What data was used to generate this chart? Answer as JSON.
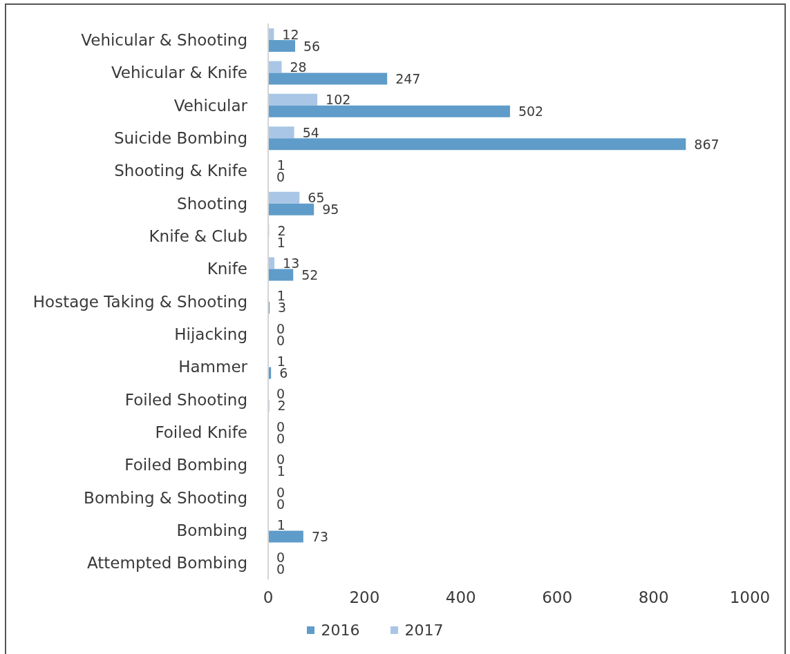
{
  "chart_data": {
    "type": "bar",
    "orientation": "horizontal",
    "categories": [
      "Vehicular & Shooting",
      "Vehicular & Knife",
      "Vehicular",
      "Suicide Bombing",
      "Shooting & Knife",
      "Shooting",
      "Knife & Club",
      "Knife",
      "Hostage Taking & Shooting",
      "Hijacking",
      "Hammer",
      "Foiled Shooting",
      "Foiled Knife",
      "Foiled Bombing",
      "Bombing & Shooting",
      "Bombing",
      "Attempted Bombing"
    ],
    "series": [
      {
        "name": "2016",
        "color": "#5f9cc9",
        "values": [
          56,
          247,
          502,
          867,
          0,
          95,
          1,
          52,
          3,
          0,
          6,
          2,
          0,
          1,
          0,
          73,
          0
        ]
      },
      {
        "name": "2017",
        "color": "#a9c6e6",
        "values": [
          12,
          28,
          102,
          54,
          1,
          65,
          2,
          13,
          1,
          0,
          1,
          0,
          0,
          0,
          0,
          1,
          0
        ]
      }
    ],
    "xlim": [
      0,
      1000
    ],
    "xticks": [
      0,
      200,
      400,
      600,
      800,
      1000
    ],
    "data_labels": true,
    "legend": "bottom"
  }
}
